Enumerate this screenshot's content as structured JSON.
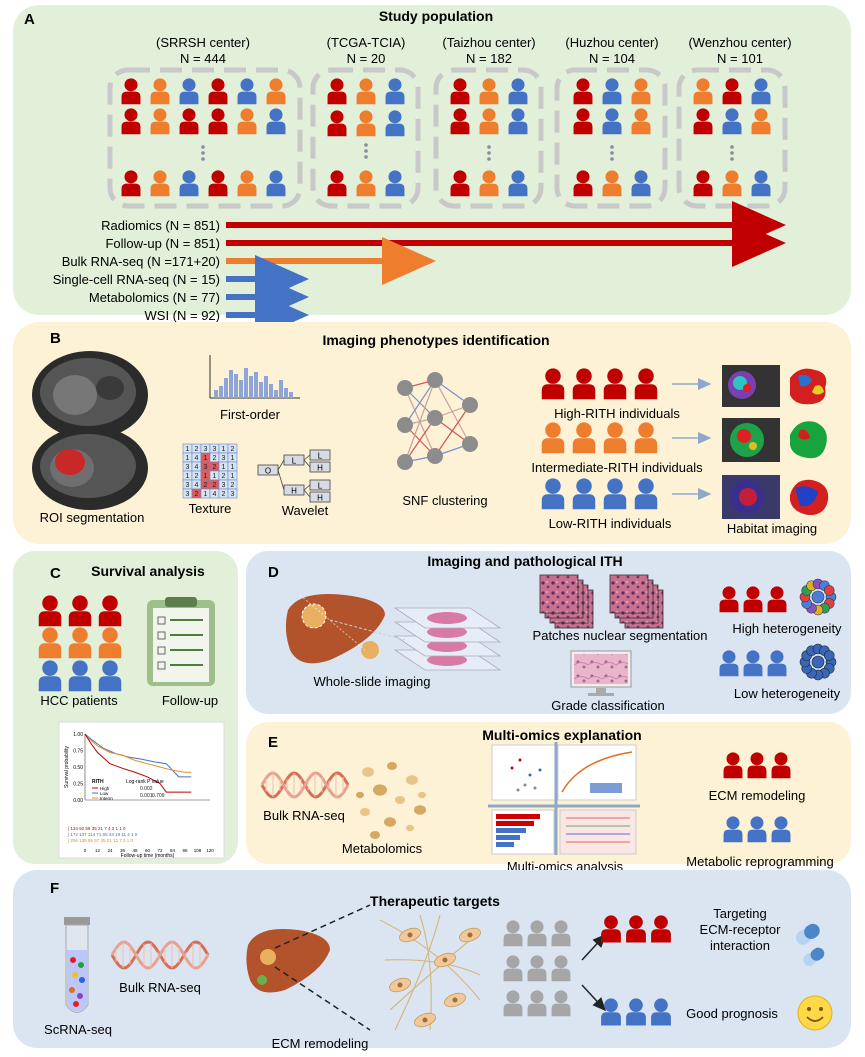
{
  "colors": {
    "red": "#c00000",
    "orange": "#ee7d2e",
    "blue": "#4472c4",
    "gray": "#a6a6a6",
    "green_panel": "#e2efd9",
    "yellow_panel": "#fdf2d5",
    "blue_panel": "#dbe5f1",
    "arrow_red": "#c00000",
    "arrow_orange": "#ee7d2e",
    "arrow_blue": "#4472c4"
  },
  "panelA": {
    "letter": "A",
    "title": "Study population",
    "centers": [
      {
        "name": "(SRRSH center)",
        "n": "N = 444"
      },
      {
        "name": "(TCGA-TCIA)",
        "n": "N = 20"
      },
      {
        "name": "(Taizhou center)",
        "n": "N = 182"
      },
      {
        "name": "(Huzhou center)",
        "n": "N = 104"
      },
      {
        "name": "(Wenzhou center)",
        "n": "N = 101"
      }
    ],
    "arrows": [
      {
        "label": "Radiomics (N = 851)",
        "color": "red"
      },
      {
        "label": "Follow-up (N = 851)",
        "color": "red"
      },
      {
        "label": "Bulk RNA-seq (N =171+20)",
        "color": "orange"
      },
      {
        "label": "Single-cell RNA-seq (N = 15)",
        "color": "blue"
      },
      {
        "label": "Metabolomics (N = 77)",
        "color": "blue"
      },
      {
        "label": "WSI (N = 92)",
        "color": "blue"
      }
    ]
  },
  "panelB": {
    "letter": "B",
    "title": "Imaging phenotypes identification",
    "roi": "ROI segmentation",
    "first_order": "First-order",
    "texture": "Texture",
    "wavelet": "Wavelet",
    "snf": "SNF clustering",
    "high": "High-RITH individuals",
    "intermediate": "Intermediate-RITH individuals",
    "low": "Low-RITH individuals",
    "habitat": "Habitat imaging",
    "texture_grid": [
      "1",
      "2",
      "3",
      "3",
      "1",
      "2",
      "1",
      "4",
      "1",
      "2",
      "3",
      "1",
      "3",
      "4",
      "3",
      "2",
      "1",
      "1",
      "1",
      "2",
      "1",
      "1",
      "2",
      "1",
      "3",
      "4",
      "2",
      "2",
      "3",
      "2",
      "3",
      "2",
      "1",
      "4",
      "2",
      "3"
    ],
    "wavelet_labels": [
      "O",
      "L",
      "H",
      "L",
      "H",
      "L",
      "H"
    ]
  },
  "panelC": {
    "letter": "C",
    "title": "Survival analysis",
    "hcc": "HCC patients",
    "followup": "Follow-up",
    "km": {
      "ylabel": "Survival probability",
      "xlabel": "Follow-up time (months)",
      "yticks": [
        "1.00",
        "0.75",
        "0.50",
        "0.25",
        "0.00"
      ],
      "xticks": [
        "0",
        "12",
        "24",
        "36",
        "48",
        "60",
        "72",
        "84",
        "96",
        "108",
        "120"
      ],
      "legend_title": "RITH",
      "legend": [
        "High",
        "Low",
        "Interm"
      ],
      "logrank_title": "Log-rank P value",
      "logrank": [
        "0.002",
        "0.001",
        "0.709"
      ],
      "risk_rows": [
        "134 92 59 35 21 7 4 3 1 1 0",
        "172 137 114 71 55 33 19 11 4 1 0",
        "206 135 95 57 35 21 12 7 3 1 0"
      ]
    }
  },
  "panelD": {
    "letter": "D",
    "title": "Imaging and pathological ITH",
    "wsi": "Whole-slide imaging",
    "patches": "Patches nuclear segmentation",
    "grade": "Grade classification",
    "high": "High heterogeneity",
    "low": "Low heterogeneity"
  },
  "panelE": {
    "letter": "E",
    "title": "Multi-omics explanation",
    "bulk": "Bulk RNA-seq",
    "metabolomics": "Metabolomics",
    "multi": "Multi-omics analysis",
    "ecm": "ECM remodeling",
    "metabolic": "Metabolic reprogramming"
  },
  "panelF": {
    "letter": "F",
    "title": "Therapeutic targets",
    "scrna": "ScRNA-seq",
    "bulk": "Bulk RNA-seq",
    "ecm": "ECM remodeling",
    "targeting": [
      "Targeting",
      "ECM-receptor",
      "interaction"
    ],
    "good": "Good prognosis"
  }
}
